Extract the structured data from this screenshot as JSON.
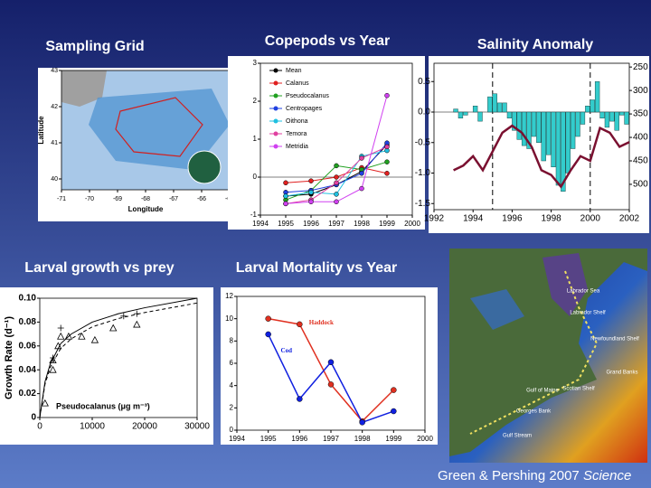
{
  "chart_data": [
    {
      "type": "map",
      "title": "Sampling Grid",
      "xlabel": "Longitude",
      "ylabel": "Latitude",
      "xlim": [
        -71,
        -65
      ],
      "xticks": [
        -71,
        -70,
        -69,
        -68,
        -67,
        -66,
        -65
      ],
      "ylim": [
        39.7,
        43
      ],
      "yticks": [
        40,
        41,
        42,
        43
      ]
    },
    {
      "type": "line",
      "title": "Copepods vs Year",
      "x": [
        1995,
        1996,
        1997,
        1998,
        1999
      ],
      "xlim": [
        1994,
        2000
      ],
      "xticks": [
        1994,
        1995,
        1996,
        1997,
        1998,
        1999,
        2000
      ],
      "ylim": [
        -1,
        3
      ],
      "yticks": [
        -1,
        0,
        1,
        2,
        3
      ],
      "legend": "upper left",
      "series": [
        {
          "name": "Mean",
          "color": "#000000",
          "values": [
            -0.5,
            -0.45,
            -0.2,
            0.15,
            0.85
          ]
        },
        {
          "name": "Calanus",
          "color": "#e02020",
          "values": [
            -0.15,
            -0.1,
            0.0,
            0.25,
            0.1
          ]
        },
        {
          "name": "Pseudocalanus",
          "color": "#20a020",
          "values": [
            -0.6,
            -0.35,
            0.3,
            0.2,
            0.4
          ]
        },
        {
          "name": "Centropages",
          "color": "#2040e0",
          "values": [
            -0.4,
            -0.35,
            -0.2,
            0.1,
            0.9
          ]
        },
        {
          "name": "Oithona",
          "color": "#20c0e0",
          "values": [
            -0.5,
            -0.4,
            -0.45,
            0.55,
            0.7
          ]
        },
        {
          "name": "Temora",
          "color": "#e040a0",
          "values": [
            -0.7,
            -0.6,
            -0.15,
            0.5,
            0.8
          ]
        },
        {
          "name": "Metridia",
          "color": "#d040f0",
          "values": [
            -0.7,
            -0.65,
            -0.65,
            -0.3,
            2.15
          ]
        }
      ]
    },
    {
      "type": "combo",
      "title": "Salinity Anomaly",
      "xlim": [
        1992,
        2002
      ],
      "xticks": [
        1992,
        1994,
        1996,
        1998,
        2000,
        2002
      ],
      "ylim": [
        -1.6,
        0.8
      ],
      "yticks": [
        0.5,
        {
          "value": 0,
          "label": "0.0"
        },
        -0.5,
        {
          "value": -1,
          "label": "-1.0"
        },
        -1.5
      ],
      "y2lim": [
        554,
        242
      ],
      "y2ticks": [
        250,
        300,
        350,
        400,
        450,
        500
      ],
      "vlines": [
        1995,
        2000
      ],
      "series": [
        {
          "kind": "bar",
          "color": "#33cccc",
          "x": [
            1993,
            1993.25,
            1993.5,
            1993.75,
            1994,
            1994.25,
            1994.5,
            1994.75,
            1995,
            1995.25,
            1995.5,
            1995.75,
            1996,
            1996.25,
            1996.5,
            1996.75,
            1997,
            1997.25,
            1997.5,
            1997.75,
            1998,
            1998.25,
            1998.5,
            1998.75,
            1999,
            1999.25,
            1999.5,
            1999.75,
            2000,
            2000.25,
            2000.5,
            2000.75,
            2001,
            2001.25,
            2001.5,
            2001.75
          ],
          "values": [
            0.05,
            -0.1,
            -0.05,
            0.0,
            0.1,
            -0.15,
            0.0,
            0.25,
            0.3,
            0.15,
            0.15,
            -0.1,
            -0.3,
            -0.45,
            -0.55,
            -0.6,
            -0.4,
            -0.5,
            -0.8,
            -0.7,
            -0.9,
            -1.2,
            -1.3,
            -1.0,
            -0.6,
            -0.4,
            -0.2,
            0.1,
            0.2,
            0.5,
            -0.1,
            -0.25,
            -0.15,
            -0.3,
            -0.05,
            -0.2
          ]
        },
        {
          "kind": "line",
          "axis": "y2",
          "color": "#7a1030",
          "x": [
            1993,
            1993.5,
            1994,
            1994.5,
            1995,
            1995.5,
            1996,
            1996.5,
            1997,
            1997.5,
            1998,
            1998.5,
            1999,
            1999.5,
            2000,
            2000.5,
            2001,
            2001.5,
            2002
          ],
          "values": [
            470,
            460,
            440,
            470,
            430,
            390,
            375,
            390,
            420,
            470,
            480,
            505,
            470,
            440,
            450,
            380,
            390,
            420,
            410
          ]
        }
      ]
    },
    {
      "type": "scatter",
      "title": "Larval growth vs prey",
      "ylabel": "Growth Rate (d⁻¹)",
      "xlabel": "Pseudocalanus (μg m⁻³)",
      "xlim": [
        0,
        30000
      ],
      "xticks": [
        0,
        10000,
        20000,
        30000
      ],
      "ylim": [
        0,
        0.1
      ],
      "yticks": [
        0,
        0.02,
        0.04,
        0.06,
        0.08,
        {
          "value": 0.1,
          "label": "0.10"
        }
      ],
      "series": [
        {
          "kind": "triangle",
          "color": "#000000",
          "x": [
            1000,
            2500,
            2500,
            3500,
            4000,
            5500,
            8000,
            10500,
            14000,
            18500
          ],
          "values": [
            0.012,
            0.04,
            0.048,
            0.06,
            0.068,
            0.068,
            0.068,
            0.065,
            0.075,
            0.078
          ]
        },
        {
          "kind": "plus",
          "color": "#000000",
          "x": [
            2500,
            4000,
            16000,
            18500
          ],
          "values": [
            0.05,
            0.075,
            0.085,
            0.087
          ]
        },
        {
          "kind": "solid",
          "color": "#000000",
          "x": [
            0,
            1000,
            2000,
            4000,
            6000,
            10000,
            15000,
            20000,
            30000
          ],
          "values": [
            0,
            0.03,
            0.045,
            0.062,
            0.07,
            0.08,
            0.087,
            0.092,
            0.1
          ]
        },
        {
          "kind": "dashed",
          "color": "#000000",
          "x": [
            0,
            1000,
            2000,
            4000,
            6000,
            10000,
            15000,
            20000,
            30000
          ],
          "values": [
            0,
            0.028,
            0.042,
            0.058,
            0.066,
            0.076,
            0.083,
            0.088,
            0.096
          ]
        }
      ]
    },
    {
      "type": "line",
      "title": "Larval Mortality vs Year",
      "x": [
        1995,
        1996,
        1997,
        1998,
        1999
      ],
      "xlim": [
        1994,
        2000
      ],
      "xticks": [
        1994,
        1995,
        1996,
        1997,
        1998,
        1999,
        2000
      ],
      "ylim": [
        0,
        12
      ],
      "yticks": [
        0,
        2,
        4,
        6,
        8,
        10,
        12
      ],
      "legend": "inline",
      "series": [
        {
          "name": "Haddock",
          "color": "#e03020",
          "values": [
            10,
            9.5,
            4.1,
            0.8,
            3.6
          ]
        },
        {
          "name": "Cod",
          "color": "#1020e0",
          "values": [
            8.6,
            2.8,
            6.1,
            0.7,
            1.7
          ]
        }
      ]
    }
  ],
  "satellite_map": {
    "labels": [
      "Labrador Sea",
      "Labrador Shelf",
      "Newfoundland Shelf",
      "Grand Banks",
      "Scotian Shelf",
      "Gulf of Maine",
      "Georges Bank",
      "Gulf Stream"
    ]
  },
  "footer": {
    "text": "Green & Pershing 2007",
    "journal": "Science"
  }
}
